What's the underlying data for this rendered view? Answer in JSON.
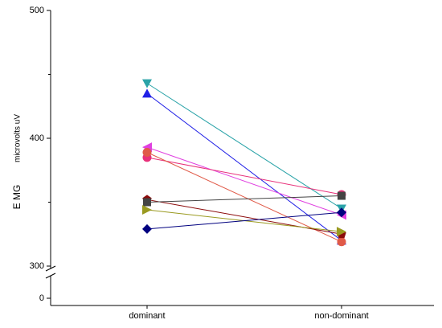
{
  "chart_data": {
    "type": "paired-line",
    "ylabel": [
      "E MG",
      "microvolts uV"
    ],
    "categories": [
      "dominant",
      "non-dominant"
    ],
    "ylim": [
      0,
      500
    ],
    "y_break": [
      0,
      300
    ],
    "yticks": [
      0,
      300,
      400,
      500
    ],
    "minor_yticks": [
      350,
      450
    ],
    "series": [
      {
        "color": "#2aa3a8",
        "marker": "triangle-down",
        "values": [
          443,
          345
        ]
      },
      {
        "color": "#1f1fe6",
        "marker": "triangle-up",
        "values": [
          435,
          320
        ]
      },
      {
        "color": "#e040e0",
        "marker": "triangle-left",
        "values": [
          393,
          340
        ]
      },
      {
        "color": "#e8307a",
        "marker": "circle",
        "values": [
          385,
          356
        ]
      },
      {
        "color": "#e05a48",
        "marker": "circle",
        "values": [
          389,
          319
        ]
      },
      {
        "color": "#8b0a0a",
        "marker": "pentagon",
        "values": [
          352,
          325
        ]
      },
      {
        "color": "#444444",
        "marker": "square",
        "values": [
          350,
          355
        ]
      },
      {
        "color": "#9a9a20",
        "marker": "triangle-right",
        "values": [
          344,
          327
        ]
      },
      {
        "color": "#00007f",
        "marker": "diamond",
        "values": [
          329,
          342
        ]
      }
    ]
  }
}
